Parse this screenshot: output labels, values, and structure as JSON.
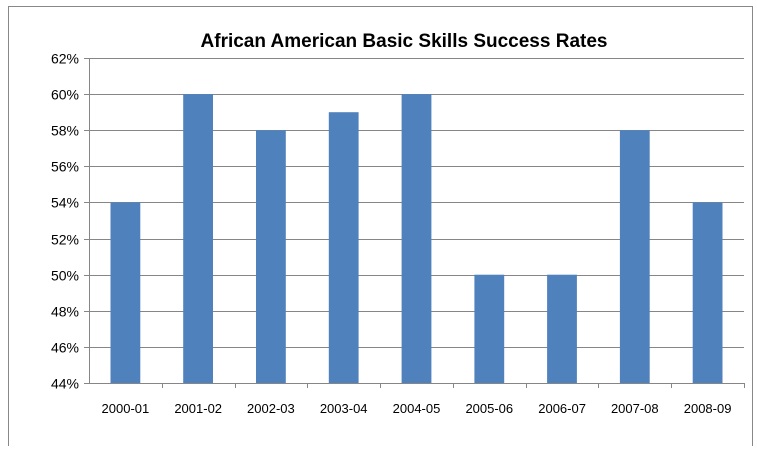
{
  "chart_data": {
    "type": "bar",
    "title": "African American Basic Skills Success Rates",
    "xlabel": "",
    "ylabel": "",
    "categories": [
      "2000-01",
      "2001-02",
      "2002-03",
      "2003-04",
      "2004-05",
      "2005-06",
      "2006-07",
      "2007-08",
      "2008-09"
    ],
    "series": [
      {
        "values": [
          54,
          60,
          58,
          59,
          60,
          50,
          50,
          58,
          54
        ]
      }
    ],
    "ylim": [
      44,
      62
    ],
    "ytick_step": 2,
    "ytick_labels": [
      "44%",
      "46%",
      "48%",
      "50%",
      "52%",
      "54%",
      "56%",
      "58%",
      "60%",
      "62%"
    ],
    "value_unit": "%",
    "grid": true,
    "legend": "none",
    "colors": {
      "bar": "#4F81BD",
      "grid": "#868686",
      "axis": "#868686"
    }
  }
}
